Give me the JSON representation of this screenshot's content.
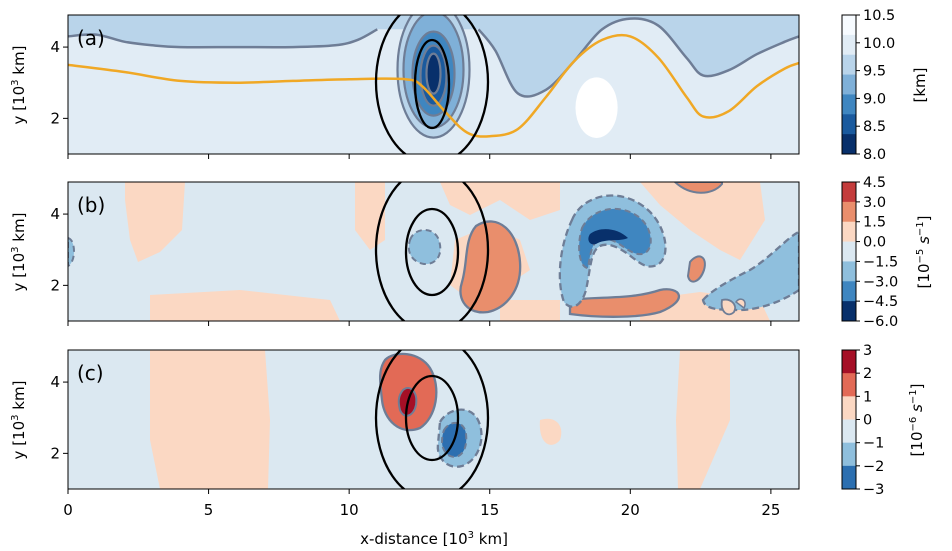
{
  "figure": {
    "xlabel_main": "x-distance [10",
    "xlabel_sup": "3",
    "xlabel_end": " km]",
    "ylabel_main": "y [10",
    "ylabel_sup": "3",
    "ylabel_end": " km]"
  },
  "chart_data": [
    {
      "type": "heatmap",
      "panel_label": "(a)",
      "xlim": [
        0,
        26
      ],
      "ylim": [
        1,
        4.9
      ],
      "xticks": [
        0,
        5,
        10,
        15,
        20,
        25
      ],
      "yticks": [
        2,
        4
      ],
      "colorbar": {
        "label": "[km]",
        "ticks": [
          "10.5",
          "10.0",
          "9.5",
          "9.0",
          "8.5",
          "8.0"
        ],
        "colors": [
          "#f7fbff",
          "#e1ecf5",
          "#b9d4ea",
          "#7fb0d8",
          "#3f86c0",
          "#1a5a9e",
          "#08306b"
        ]
      },
      "orange_curve": {
        "color": "#f0a825",
        "x": [
          0,
          2,
          4,
          6,
          8,
          10,
          12,
          12.6,
          13.4,
          14.2,
          15,
          16,
          17,
          18,
          19,
          20,
          21,
          22,
          22.6,
          23.5,
          24.5,
          25.5,
          26
        ],
        "y": [
          3.5,
          3.3,
          3.05,
          3.0,
          3.05,
          3.1,
          3.1,
          2.9,
          2.2,
          1.6,
          1.5,
          1.7,
          2.6,
          3.6,
          4.2,
          4.3,
          3.7,
          2.6,
          2.05,
          2.2,
          2.9,
          3.4,
          3.55
        ]
      },
      "gray_contour": {
        "color": "#6e7d96",
        "x": [
          0,
          1,
          2,
          3,
          4,
          6,
          8,
          9.5,
          10.3,
          11.0
        ],
        "y": [
          4.3,
          4.35,
          4.15,
          4.05,
          4.0,
          4.0,
          4.0,
          4.05,
          4.2,
          4.5
        ],
        "x2": [
          14.6,
          15.2,
          16,
          17,
          18,
          19,
          20,
          21,
          22,
          22.6,
          23.5,
          24.5,
          25.5,
          26
        ],
        "y2": [
          4.5,
          3.9,
          2.7,
          2.8,
          3.6,
          4.5,
          4.8,
          4.6,
          3.7,
          3.2,
          3.35,
          3.8,
          4.15,
          4.3
        ]
      },
      "white_blob": {
        "cx": 18.8,
        "cy": 2.3,
        "rx": 0.75,
        "ry": 0.85
      },
      "vortex": {
        "cx": 13.0,
        "cy": 3.2,
        "levels": 4
      }
    },
    {
      "type": "heatmap",
      "panel_label": "(b)",
      "xlim": [
        0,
        26
      ],
      "ylim": [
        1,
        4.9
      ],
      "xticks": [
        0,
        5,
        10,
        15,
        20,
        25
      ],
      "yticks": [
        2,
        4
      ],
      "colorbar": {
        "label": "[10",
        "label_sup": "−5",
        "label_unit": " s",
        "label_unit_sup": "−1",
        "label_end": "]",
        "ticks": [
          "4.5",
          "3.0",
          "1.5",
          "0.0",
          "−1.5",
          "−3.0",
          "−4.5",
          "−6.0"
        ],
        "colors": [
          "#c43c3c",
          "#e98e6c",
          "#fbd8c3",
          "#dbe8f1",
          "#8fbfdd",
          "#3f86c0",
          "#08306b"
        ]
      }
    },
    {
      "type": "heatmap",
      "panel_label": "(c)",
      "xlim": [
        0,
        26
      ],
      "ylim": [
        1,
        4.9
      ],
      "xticks": [
        0,
        5,
        10,
        15,
        20,
        25
      ],
      "yticks": [
        2,
        4
      ],
      "colorbar": {
        "label": "[10",
        "label_sup": "−6",
        "label_unit": " s",
        "label_unit_sup": "−1",
        "label_end": "]",
        "ticks": [
          "3",
          "2",
          "1",
          "0",
          "−1",
          "−2",
          "−3"
        ],
        "colors": [
          "#a50f26",
          "#e26a56",
          "#fbd8c3",
          "#dbe8f1",
          "#8fbfdd",
          "#2c6fb0"
        ]
      }
    }
  ]
}
